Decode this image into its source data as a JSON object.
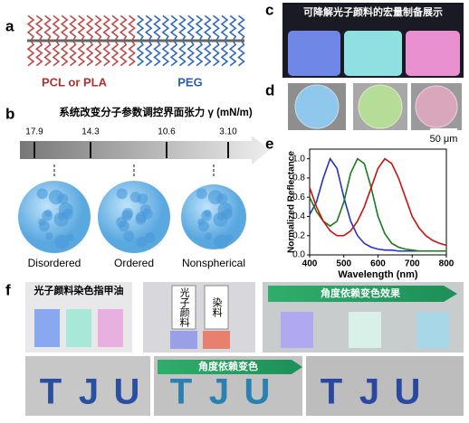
{
  "panel_a": {
    "label": "a",
    "left_name": "PCL or PLA",
    "right_name": "PEG"
  },
  "panel_b": {
    "label": "b",
    "title": "系统改变分子参数调控界面张力 γ (mN/m)",
    "scale_labels": [
      "17.9",
      "14.3",
      "10.6",
      "3.10"
    ],
    "states": [
      "Disordered",
      "Ordered",
      "Nonspherical"
    ]
  },
  "panel_c": {
    "label": "c",
    "title": "可降解光子颜料的宏量制备展示"
  },
  "panel_d": {
    "label": "d",
    "scale_bar": "50 μm"
  },
  "panel_e": {
    "label": "e"
  },
  "panel_f": {
    "label": "f",
    "box1_title": "光子颜料染色指甲油",
    "bottle_left": "光子颜料",
    "bottle_right": "染料",
    "banner_top": "角度依赖变色效果",
    "banner_bottom": "角度依赖变色",
    "letters": [
      "T",
      "J",
      "U"
    ]
  },
  "chart_data": {
    "type": "line",
    "xlabel": "Wavelength (nm)",
    "ylabel": "Normalized Reflectance",
    "x": [
      400,
      420,
      440,
      460,
      480,
      500,
      520,
      540,
      560,
      580,
      600,
      620,
      640,
      660,
      680,
      700,
      720,
      740,
      760,
      780,
      800
    ],
    "xlim": [
      400,
      800
    ],
    "xticks": [
      400,
      500,
      600,
      700,
      800
    ],
    "ylim": [
      0,
      1.1
    ],
    "yticks": [
      {
        "value": 0,
        "label": "0.0"
      },
      0.2,
      0.4,
      0.6,
      0.8,
      {
        "value": 1,
        "label": "1.0"
      }
    ],
    "series": [
      {
        "color": "#2233cc",
        "values": [
          0.42,
          0.55,
          0.8,
          1.0,
          0.9,
          0.6,
          0.35,
          0.2,
          0.12,
          0.08,
          0.06,
          0.05,
          0.05,
          0.04,
          0.04,
          0.04,
          0.04,
          0.04,
          0.04,
          0.04,
          0.04
        ]
      },
      {
        "color": "#1a7a1a",
        "values": [
          0.6,
          0.45,
          0.35,
          0.3,
          0.35,
          0.55,
          0.85,
          1.0,
          0.95,
          0.7,
          0.4,
          0.22,
          0.12,
          0.08,
          0.06,
          0.05,
          0.04,
          0.04,
          0.04,
          0.04,
          0.04
        ]
      },
      {
        "color": "#cc1111",
        "values": [
          0.7,
          0.5,
          0.35,
          0.25,
          0.2,
          0.2,
          0.25,
          0.35,
          0.5,
          0.7,
          0.9,
          1.0,
          0.95,
          0.8,
          0.6,
          0.4,
          0.28,
          0.2,
          0.15,
          0.12,
          0.1
        ]
      }
    ]
  }
}
